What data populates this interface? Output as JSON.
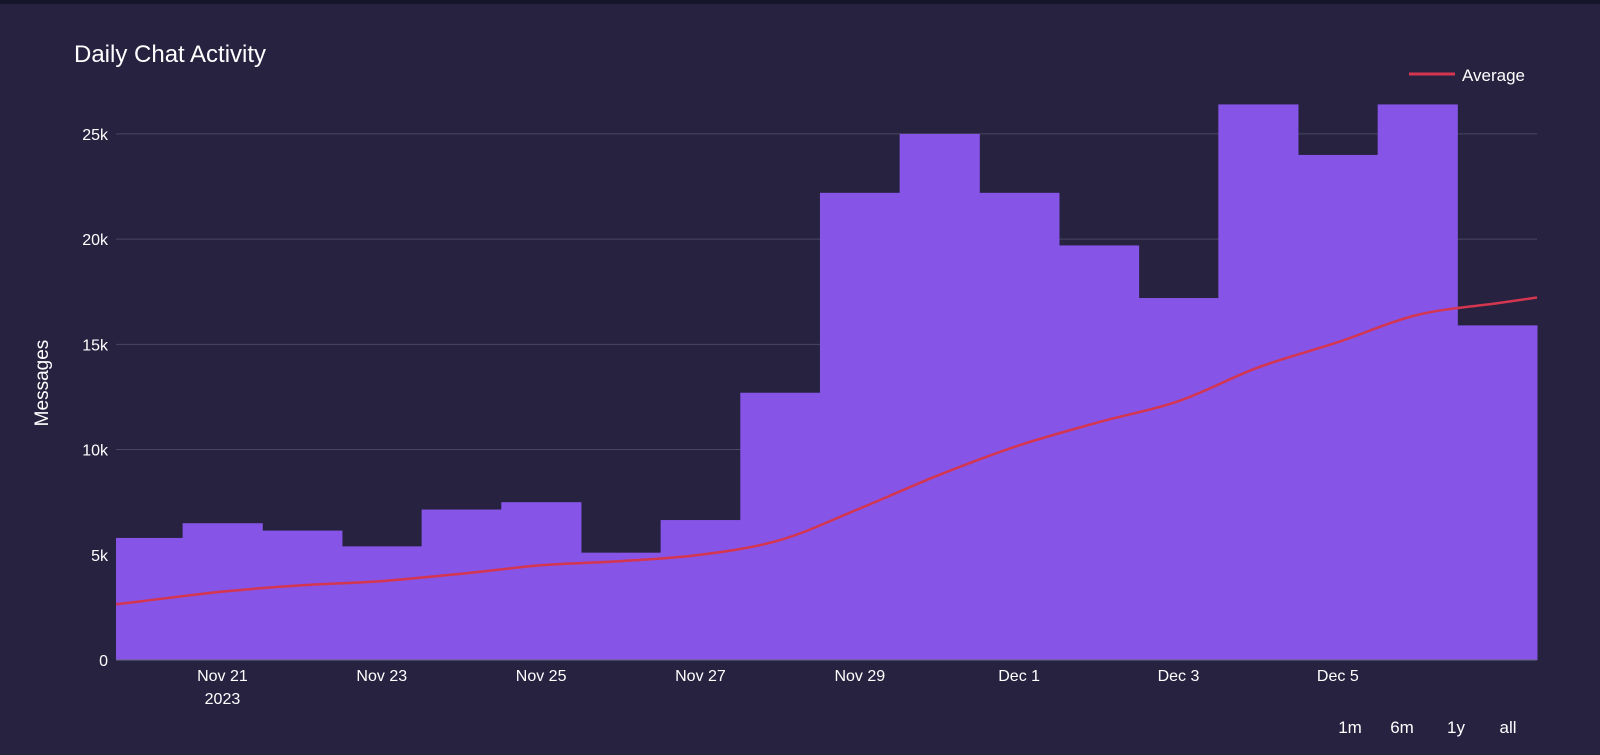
{
  "chart_data": {
    "type": "bar",
    "title": "Daily Chat Activity",
    "ylabel": "Messages",
    "xlabel": "",
    "ylim": [
      0,
      26800
    ],
    "y_ticks": [
      {
        "value": 0,
        "label": "0"
      },
      {
        "value": 5000,
        "label": "5k"
      },
      {
        "value": 10000,
        "label": "10k"
      },
      {
        "value": 15000,
        "label": "15k"
      },
      {
        "value": 20000,
        "label": "20k"
      },
      {
        "value": 25000,
        "label": "25k"
      }
    ],
    "x_ticks": [
      {
        "date": "2023-11-21",
        "label": "Nov 21",
        "sublabel": "2023"
      },
      {
        "date": "2023-11-23",
        "label": "Nov 23"
      },
      {
        "date": "2023-11-25",
        "label": "Nov 25"
      },
      {
        "date": "2023-11-27",
        "label": "Nov 27"
      },
      {
        "date": "2023-11-29",
        "label": "Nov 29"
      },
      {
        "date": "2023-12-01",
        "label": "Dec 1"
      },
      {
        "date": "2023-12-03",
        "label": "Dec 3"
      },
      {
        "date": "2023-12-05",
        "label": "Dec 5"
      }
    ],
    "grid": true,
    "legend_position": "top-right",
    "series": [
      {
        "kind": "bars",
        "color": "#8654e6",
        "dates": [
          "2023-11-20",
          "2023-11-21",
          "2023-11-22",
          "2023-11-23",
          "2023-11-24",
          "2023-11-25",
          "2023-11-26",
          "2023-11-27",
          "2023-11-28",
          "2023-11-29",
          "2023-11-30",
          "2023-12-01",
          "2023-12-02",
          "2023-12-03",
          "2023-12-04",
          "2023-12-05",
          "2023-12-06",
          "2023-12-07"
        ],
        "values": [
          5800,
          6500,
          6150,
          5400,
          7150,
          7500,
          5100,
          6650,
          12700,
          22200,
          25000,
          22200,
          19700,
          17200,
          26400,
          24000,
          26400,
          15900
        ]
      },
      {
        "kind": "line",
        "name": "Average",
        "color": "#d4364f",
        "dates": [
          "2023-11-20",
          "2023-11-21",
          "2023-11-22",
          "2023-11-23",
          "2023-11-24",
          "2023-11-25",
          "2023-11-26",
          "2023-11-27",
          "2023-11-28",
          "2023-11-29",
          "2023-11-30",
          "2023-12-01",
          "2023-12-02",
          "2023-12-03",
          "2023-12-04",
          "2023-12-05",
          "2023-12-06",
          "2023-12-07"
        ],
        "values": [
          2800,
          3250,
          3550,
          3750,
          4100,
          4500,
          4700,
          5000,
          5700,
          7200,
          8800,
          10200,
          11300,
          12300,
          13900,
          15100,
          16400,
          16950
        ]
      }
    ]
  },
  "range_selector": {
    "buttons": [
      "1m",
      "6m",
      "1y",
      "all"
    ]
  }
}
